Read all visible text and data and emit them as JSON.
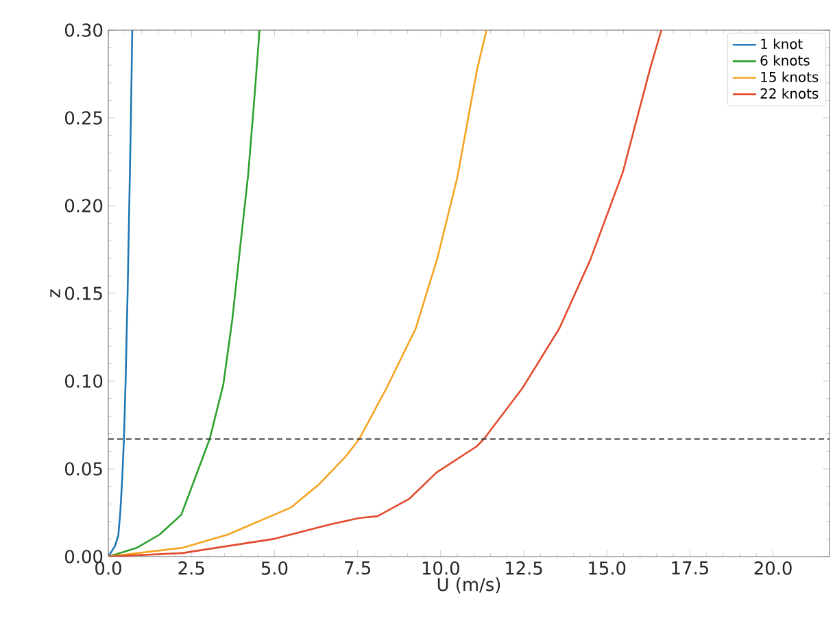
{
  "chart_data": {
    "type": "line",
    "xlabel": "U (m/s)",
    "ylabel": "z",
    "xlim": [
      0,
      21.7
    ],
    "ylim": [
      0,
      0.3
    ],
    "xticks": [
      {
        "value": 0,
        "label": "0.0"
      },
      2.5,
      {
        "value": 5,
        "label": "5.0"
      },
      7.5,
      {
        "value": 10,
        "label": "10.0"
      },
      12.5,
      {
        "value": 15,
        "label": "15.0"
      },
      17.5,
      {
        "value": 20,
        "label": "20.0"
      }
    ],
    "yticks": [
      {
        "value": 0,
        "label": "0.00"
      },
      0.05,
      {
        "value": 0.1,
        "label": "0.10"
      },
      0.15,
      {
        "value": 0.2,
        "label": "0.20"
      },
      0.25,
      {
        "value": 0.3,
        "label": "0.30"
      }
    ],
    "legend": "top right",
    "marker": "none",
    "line_style": "solid",
    "ref_lines": [
      {
        "axis": "y",
        "value": 0.067,
        "color": "#333333",
        "line_style": "dashed"
      }
    ],
    "series": [
      {
        "name": "1 knot",
        "color": "#1f77b4",
        "x": [
          0,
          0.1,
          0.2,
          0.3,
          0.36,
          0.42,
          0.47,
          0.52,
          0.58,
          0.63,
          0.68,
          0.72
        ],
        "values": [
          0,
          0.003,
          0.006,
          0.012,
          0.025,
          0.045,
          0.067,
          0.1,
          0.15,
          0.2,
          0.25,
          0.3
        ]
      },
      {
        "name": "6 knots",
        "color": "#2ca02c",
        "x": [
          0,
          0.86,
          1.54,
          2.09,
          2.2,
          3.05,
          3.46,
          3.73,
          4.0,
          4.21,
          4.41,
          4.55
        ],
        "values": [
          0,
          0.005,
          0.0125,
          0.022,
          0.024,
          0.067,
          0.098,
          0.135,
          0.182,
          0.218,
          0.265,
          0.3
        ]
      },
      {
        "name": "15 knots",
        "color": "#f5a31f",
        "x": [
          0,
          2.23,
          3.59,
          5.5,
          6.33,
          7.14,
          7.55,
          8.37,
          9.25,
          9.9,
          10.5,
          11.1,
          11.38
        ],
        "values": [
          0,
          0.005,
          0.0125,
          0.028,
          0.041,
          0.057,
          0.067,
          0.096,
          0.13,
          0.17,
          0.216,
          0.278,
          0.3
        ]
      },
      {
        "name": "22 knots",
        "color": "#e24a2c",
        "x": [
          0,
          2.23,
          4.96,
          6.6,
          7.55,
          8.1,
          9.06,
          9.88,
          11.1,
          11.3,
          12.46,
          13.57,
          14.5,
          15.48,
          16.3,
          16.64
        ],
        "values": [
          0,
          0.002,
          0.01,
          0.018,
          0.022,
          0.023,
          0.033,
          0.048,
          0.063,
          0.067,
          0.096,
          0.13,
          0.169,
          0.219,
          0.278,
          0.3
        ]
      }
    ]
  }
}
